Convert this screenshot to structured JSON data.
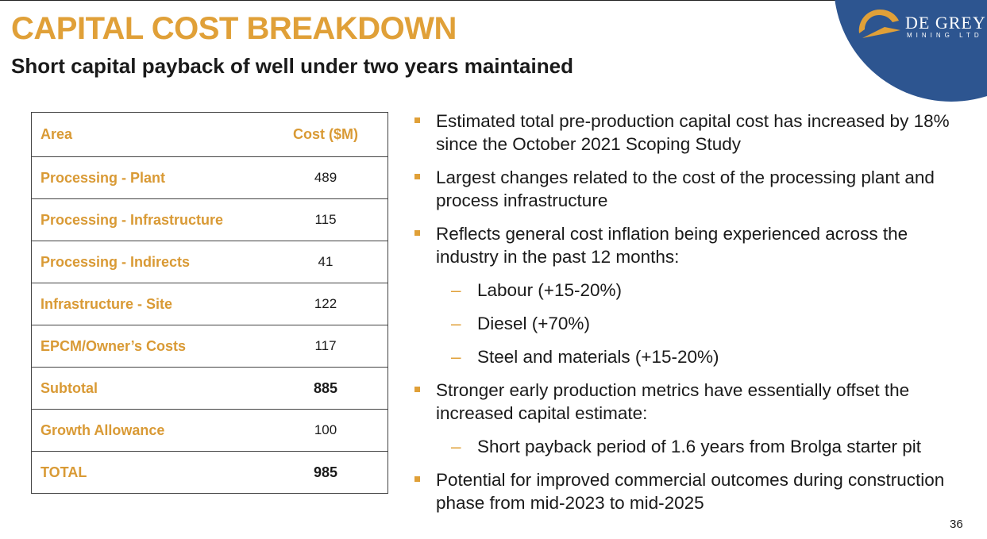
{
  "header": {
    "title": "CAPITAL COST BREAKDOWN",
    "subtitle": "Short capital payback of well under two years maintained"
  },
  "logo": {
    "name": "DE GREY",
    "tagline": "MINING LTD",
    "colors": {
      "circle": "#2d5590",
      "gold": "#e0a038"
    }
  },
  "table": {
    "headers": {
      "area": "Area",
      "cost": "Cost ($M)"
    },
    "rows": [
      {
        "area": "Processing - Plant",
        "cost": "489"
      },
      {
        "area": "Processing - Infrastructure",
        "cost": "115"
      },
      {
        "area": "Processing - Indirects",
        "cost": "41"
      },
      {
        "area": "Infrastructure - Site",
        "cost": "122"
      },
      {
        "area": "EPCM/Owner’s Costs",
        "cost": "117"
      },
      {
        "area": "Subtotal",
        "cost": "885"
      },
      {
        "area": "Growth Allowance",
        "cost": "100"
      },
      {
        "area": "TOTAL",
        "cost": "985"
      }
    ]
  },
  "bullets": {
    "b1": "Estimated total pre-production capital cost has increased by 18% since the October 2021 Scoping Study",
    "b2": "Largest changes related to the cost of the processing plant and process infrastructure",
    "b3": "Reflects general cost inflation being experienced across the industry in the past 12 months:",
    "b3_sub": [
      "Labour (+15-20%)",
      "Diesel (+70%)",
      "Steel and materials (+15-20%)"
    ],
    "b4": "Stronger early production metrics have essentially offset the increased capital estimate:",
    "b4_sub": [
      "Short payback period of 1.6 years from Brolga starter pit"
    ],
    "b5": "Potential for improved commercial outcomes during construction phase from mid-2023 to mid-2025"
  },
  "footer": {
    "page_number": "36"
  },
  "colors": {
    "accent": "#e0a038",
    "text": "#1a1a1a"
  }
}
